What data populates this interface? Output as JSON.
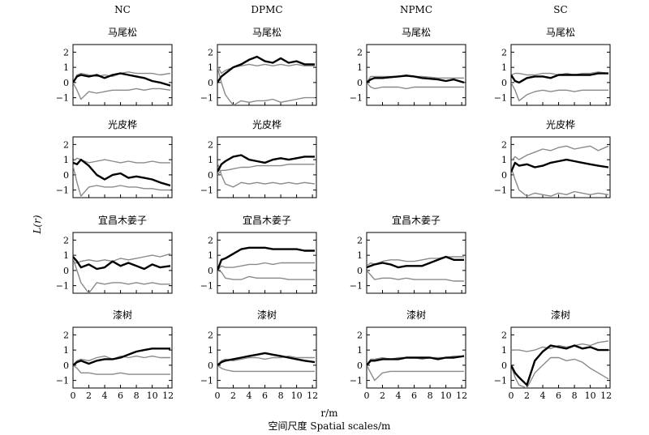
{
  "figure": {
    "column_titles": [
      "NC",
      "DPMC",
      "NPMC",
      "SC"
    ],
    "ylabel": "L(r)",
    "xlabel_unit": "r/m",
    "xlabel": "空间尺度 Spatial scales/m"
  },
  "chart_data": [
    {
      "type": "line",
      "column": "NC",
      "title": "马尾松",
      "xlim": [
        0,
        12.5
      ],
      "ylim": [
        -1.5,
        2.5
      ],
      "x": [
        0,
        0.5,
        1,
        2,
        3,
        4,
        5,
        6,
        7,
        8,
        9,
        10,
        11,
        12.3
      ],
      "series": [
        {
          "values": [
            0,
            0.4,
            0.5,
            0.4,
            0.5,
            0.3,
            0.5,
            0.6,
            0.5,
            0.4,
            0.3,
            0.1,
            0,
            -0.2
          ]
        },
        {
          "values": [
            0,
            0.5,
            0.6,
            0.5,
            0.4,
            0.5,
            0.4,
            0.6,
            0.7,
            0.6,
            0.6,
            0.6,
            0.5,
            0.6
          ]
        },
        {
          "values": [
            0,
            -0.5,
            -1.1,
            -0.6,
            -0.7,
            -0.6,
            -0.5,
            -0.5,
            -0.5,
            -0.4,
            -0.5,
            -0.4,
            -0.4,
            -0.5
          ]
        }
      ]
    },
    {
      "type": "line",
      "column": "DPMC",
      "title": "马尾松",
      "xlim": [
        0,
        12.5
      ],
      "ylim": [
        -1.5,
        2.5
      ],
      "x": [
        0,
        0.5,
        1,
        2,
        3,
        4,
        5,
        6,
        7,
        8,
        9,
        10,
        11,
        12.3
      ],
      "series": [
        {
          "values": [
            0,
            0.4,
            0.6,
            1.0,
            1.2,
            1.5,
            1.7,
            1.4,
            1.3,
            1.6,
            1.3,
            1.4,
            1.2,
            1.2
          ]
        },
        {
          "values": [
            1.1,
            0.6,
            0.8,
            1.0,
            1.1,
            1.2,
            1.1,
            1.2,
            1.1,
            1.2,
            1.1,
            1.2,
            1.1,
            1.1
          ]
        },
        {
          "values": [
            1.0,
            0,
            -0.8,
            -1.5,
            -1.2,
            -1.3,
            -1.2,
            -1.2,
            -1.1,
            -1.3,
            -1.2,
            -1.1,
            -1.0,
            -1.0
          ]
        }
      ]
    },
    {
      "type": "line",
      "column": "NPMC",
      "title": "马尾松",
      "xlim": [
        0,
        12.5
      ],
      "ylim": [
        -1.5,
        2.5
      ],
      "x": [
        0,
        0.5,
        1,
        2,
        3,
        4,
        5,
        6,
        7,
        8,
        9,
        10,
        11,
        12.3
      ],
      "series": [
        {
          "values": [
            0,
            0.2,
            0.3,
            0.3,
            0.35,
            0.4,
            0.45,
            0.4,
            0.3,
            0.25,
            0.2,
            0.1,
            0.2,
            0
          ]
        },
        {
          "values": [
            0,
            0.4,
            0.4,
            0.4,
            0.4,
            0.4,
            0.5,
            0.4,
            0.4,
            0.35,
            0.3,
            0.3,
            0.3,
            0.3
          ]
        },
        {
          "values": [
            0,
            -0.3,
            -0.4,
            -0.3,
            -0.3,
            -0.3,
            -0.4,
            -0.3,
            -0.3,
            -0.3,
            -0.3,
            -0.3,
            -0.3,
            -0.3
          ]
        }
      ]
    },
    {
      "type": "line",
      "column": "SC",
      "title": "马尾松",
      "xlim": [
        0,
        12.5
      ],
      "ylim": [
        -1.5,
        2.5
      ],
      "x": [
        0,
        0.5,
        1,
        2,
        3,
        4,
        5,
        6,
        7,
        8,
        9,
        10,
        11,
        12.3
      ],
      "series": [
        {
          "values": [
            0.5,
            0.1,
            0,
            0.3,
            0.4,
            0.4,
            0.3,
            0.5,
            0.5,
            0.5,
            0.5,
            0.5,
            0.6,
            0.6
          ]
        },
        {
          "values": [
            0.5,
            0.6,
            0.6,
            0.5,
            0.5,
            0.6,
            0.6,
            0.5,
            0.6,
            0.5,
            0.6,
            0.6,
            0.7,
            0.6
          ]
        },
        {
          "values": [
            0,
            -0.5,
            -1.2,
            -0.8,
            -0.6,
            -0.5,
            -0.6,
            -0.5,
            -0.5,
            -0.6,
            -0.5,
            -0.5,
            -0.5,
            -0.5
          ]
        }
      ]
    },
    {
      "type": "line",
      "column": "NC",
      "title": "光皮桦",
      "xlim": [
        0,
        12.5
      ],
      "ylim": [
        -1.5,
        2.5
      ],
      "x": [
        0,
        0.5,
        1,
        2,
        3,
        4,
        5,
        6,
        7,
        8,
        9,
        10,
        11,
        12.3
      ],
      "series": [
        {
          "values": [
            0.8,
            0.7,
            1.0,
            0.6,
            0,
            -0.3,
            0,
            0.1,
            -0.2,
            -0.1,
            -0.2,
            -0.3,
            -0.5,
            -0.7
          ]
        },
        {
          "values": [
            0.9,
            1.1,
            1.0,
            0.8,
            0.9,
            1.0,
            0.9,
            0.8,
            0.9,
            0.8,
            0.8,
            0.9,
            0.8,
            0.8
          ]
        },
        {
          "values": [
            0.6,
            -0.5,
            -1.4,
            -0.8,
            -0.7,
            -0.8,
            -0.8,
            -0.7,
            -0.8,
            -0.8,
            -0.9,
            -0.9,
            -1.0,
            -1.0
          ]
        }
      ]
    },
    {
      "type": "line",
      "column": "DPMC",
      "title": "光皮桦",
      "xlim": [
        0,
        12.5
      ],
      "ylim": [
        -1.5,
        2.5
      ],
      "x": [
        0,
        0.5,
        1,
        2,
        3,
        4,
        5,
        6,
        7,
        8,
        9,
        10,
        11,
        12.3
      ],
      "series": [
        {
          "values": [
            0.2,
            0.7,
            0.9,
            1.2,
            1.3,
            1.0,
            0.9,
            0.8,
            1.0,
            1.1,
            1.0,
            1.1,
            1.2,
            1.2
          ]
        },
        {
          "values": [
            0,
            0.3,
            0.3,
            0.4,
            0.5,
            0.5,
            0.6,
            0.6,
            0.6,
            0.6,
            0.7,
            0.7,
            0.7,
            0.7
          ]
        },
        {
          "values": [
            0.8,
            0,
            -0.6,
            -0.8,
            -0.5,
            -0.6,
            -0.5,
            -0.6,
            -0.5,
            -0.6,
            -0.5,
            -0.6,
            -0.5,
            -0.6
          ]
        }
      ]
    },
    {
      "type": "line",
      "column": "SC",
      "title": "光皮桦",
      "xlim": [
        0,
        12.5
      ],
      "ylim": [
        -1.5,
        2.5
      ],
      "x": [
        0,
        0.5,
        1,
        2,
        3,
        4,
        5,
        6,
        7,
        8,
        9,
        10,
        11,
        12.3
      ],
      "series": [
        {
          "values": [
            0.2,
            0.8,
            0.6,
            0.7,
            0.5,
            0.6,
            0.8,
            0.9,
            1.0,
            0.9,
            0.8,
            0.7,
            0.6,
            0.5
          ]
        },
        {
          "values": [
            0.9,
            1.2,
            1.0,
            1.3,
            1.5,
            1.7,
            1.6,
            1.8,
            1.9,
            1.7,
            1.8,
            1.9,
            1.6,
            1.9
          ]
        },
        {
          "values": [
            0.5,
            -0.3,
            -1.0,
            -1.4,
            -1.2,
            -1.3,
            -1.4,
            -1.2,
            -1.3,
            -1.1,
            -1.2,
            -1.3,
            -1.2,
            -1.3
          ]
        }
      ]
    },
    {
      "type": "line",
      "column": "NC",
      "title": "宜昌木姜子",
      "xlim": [
        0,
        12.5
      ],
      "ylim": [
        -1.5,
        2.5
      ],
      "x": [
        0,
        0.5,
        1,
        2,
        3,
        4,
        5,
        6,
        7,
        8,
        9,
        10,
        11,
        12.3
      ],
      "series": [
        {
          "values": [
            0.9,
            0.6,
            0.2,
            0.4,
            0.1,
            0.2,
            0.6,
            0.3,
            0.5,
            0.3,
            0.1,
            0.4,
            0.2,
            0.3
          ]
        },
        {
          "values": [
            0.5,
            0.5,
            0.6,
            0.7,
            0.6,
            0.7,
            0.6,
            0.8,
            0.7,
            0.8,
            0.9,
            1.0,
            0.9,
            1.1
          ]
        },
        {
          "values": [
            0.8,
            0,
            -0.8,
            -1.5,
            -0.8,
            -0.9,
            -0.8,
            -0.8,
            -0.9,
            -0.8,
            -0.9,
            -0.8,
            -0.9,
            -0.9
          ]
        }
      ]
    },
    {
      "type": "line",
      "column": "DPMC",
      "title": "宜昌木姜子",
      "xlim": [
        0,
        12.5
      ],
      "ylim": [
        -1.5,
        2.5
      ],
      "x": [
        0,
        0.5,
        1,
        2,
        3,
        4,
        5,
        6,
        7,
        8,
        9,
        10,
        11,
        12.3
      ],
      "series": [
        {
          "values": [
            0,
            0.7,
            0.8,
            1.1,
            1.4,
            1.5,
            1.5,
            1.5,
            1.4,
            1.4,
            1.4,
            1.4,
            1.3,
            1.3
          ]
        },
        {
          "values": [
            0,
            0.3,
            0.2,
            0.2,
            0.3,
            0.4,
            0.4,
            0.5,
            0.4,
            0.5,
            0.5,
            0.5,
            0.5,
            0.5
          ]
        },
        {
          "values": [
            0,
            -0.1,
            -0.5,
            -0.6,
            -0.6,
            -0.4,
            -0.5,
            -0.5,
            -0.5,
            -0.5,
            -0.6,
            -0.6,
            -0.6,
            -0.6
          ]
        }
      ]
    },
    {
      "type": "line",
      "column": "NPMC",
      "title": "宜昌木姜子",
      "xlim": [
        0,
        12.5
      ],
      "ylim": [
        -1.5,
        2.5
      ],
      "x": [
        0,
        0.5,
        1,
        2,
        3,
        4,
        5,
        6,
        7,
        8,
        9,
        10,
        11,
        12.3
      ],
      "series": [
        {
          "values": [
            0.2,
            0.3,
            0.4,
            0.5,
            0.4,
            0.2,
            0.3,
            0.3,
            0.3,
            0.5,
            0.7,
            0.9,
            0.7,
            0.7
          ]
        },
        {
          "values": [
            0.3,
            0.5,
            0.4,
            0.6,
            0.7,
            0.7,
            0.6,
            0.6,
            0.7,
            0.8,
            0.8,
            0.9,
            0.9,
            0.9
          ]
        },
        {
          "values": [
            0,
            -0.3,
            -0.6,
            -0.5,
            -0.5,
            -0.6,
            -0.5,
            -0.6,
            -0.6,
            -0.6,
            -0.6,
            -0.6,
            -0.7,
            -0.7
          ]
        }
      ]
    },
    {
      "type": "line",
      "column": "NC",
      "title": "漆树",
      "xlim": [
        0,
        12.5
      ],
      "ylim": [
        -1.5,
        2.5
      ],
      "x": [
        0,
        0.5,
        1,
        2,
        3,
        4,
        5,
        6,
        7,
        8,
        9,
        10,
        11,
        12.3
      ],
      "series": [
        {
          "values": [
            0,
            0.2,
            0.3,
            0.1,
            0.3,
            0.4,
            0.4,
            0.5,
            0.7,
            0.9,
            1.0,
            1.1,
            1.1,
            1.1
          ]
        },
        {
          "values": [
            0,
            0.3,
            0.4,
            0.3,
            0.5,
            0.6,
            0.4,
            0.6,
            0.5,
            0.6,
            0.5,
            0.6,
            0.5,
            0.5
          ]
        },
        {
          "values": [
            0,
            -0.2,
            -0.5,
            -0.5,
            -0.6,
            -0.6,
            -0.6,
            -0.5,
            -0.6,
            -0.6,
            -0.6,
            -0.6,
            -0.6,
            -0.6
          ]
        }
      ]
    },
    {
      "type": "line",
      "column": "DPMC",
      "title": "漆树",
      "xlim": [
        0,
        12.5
      ],
      "ylim": [
        -1.5,
        2.5
      ],
      "x": [
        0,
        0.5,
        1,
        2,
        3,
        4,
        5,
        6,
        7,
        8,
        9,
        10,
        11,
        12.3
      ],
      "series": [
        {
          "values": [
            0,
            0.2,
            0.3,
            0.4,
            0.5,
            0.6,
            0.7,
            0.8,
            0.7,
            0.6,
            0.5,
            0.4,
            0.3,
            0.2
          ]
        },
        {
          "values": [
            0,
            0.3,
            0.4,
            0.3,
            0.4,
            0.5,
            0.5,
            0.4,
            0.5,
            0.5,
            0.6,
            0.5,
            0.5,
            0.5
          ]
        },
        {
          "values": [
            0,
            -0.2,
            -0.3,
            -0.4,
            -0.4,
            -0.4,
            -0.4,
            -0.4,
            -0.4,
            -0.4,
            -0.4,
            -0.4,
            -0.4,
            -0.4
          ]
        }
      ]
    },
    {
      "type": "line",
      "column": "NPMC",
      "title": "漆树",
      "xlim": [
        0,
        12.5
      ],
      "ylim": [
        -1.5,
        2.5
      ],
      "x": [
        0,
        0.5,
        1,
        2,
        3,
        4,
        5,
        6,
        7,
        8,
        9,
        10,
        11,
        12.3
      ],
      "series": [
        {
          "values": [
            0,
            0.3,
            0.3,
            0.4,
            0.4,
            0.4,
            0.5,
            0.5,
            0.5,
            0.5,
            0.4,
            0.5,
            0.5,
            0.6
          ]
        },
        {
          "values": [
            0,
            0.4,
            0.4,
            0.5,
            0.4,
            0.5,
            0.5,
            0.5,
            0.4,
            0.5,
            0.5,
            0.5,
            0.6,
            0.6
          ]
        },
        {
          "values": [
            0,
            -0.5,
            -1.0,
            -0.5,
            -0.4,
            -0.4,
            -0.4,
            -0.4,
            -0.4,
            -0.4,
            -0.4,
            -0.4,
            -0.4,
            -0.4
          ]
        }
      ]
    },
    {
      "type": "line",
      "column": "SC",
      "title": "漆树",
      "xlim": [
        0,
        12.5
      ],
      "ylim": [
        -1.5,
        2.5
      ],
      "x": [
        0,
        0.5,
        1,
        2,
        3,
        4,
        5,
        6,
        7,
        8,
        9,
        10,
        11,
        12.3
      ],
      "series": [
        {
          "values": [
            0,
            -0.5,
            -0.8,
            -1.3,
            0.3,
            0.9,
            1.3,
            1.2,
            1.1,
            1.3,
            1.1,
            1.2,
            1.0,
            1.0
          ]
        },
        {
          "values": [
            1.0,
            1.0,
            1.0,
            0.9,
            1.0,
            1.2,
            1.1,
            1.3,
            1.2,
            1.3,
            1.4,
            1.3,
            1.5,
            1.6
          ]
        },
        {
          "values": [
            0,
            -0.8,
            -1.3,
            -1.5,
            -0.5,
            0,
            0.5,
            0.5,
            0.3,
            0.4,
            0.2,
            -0.2,
            -0.5,
            -0.9
          ]
        }
      ]
    }
  ]
}
